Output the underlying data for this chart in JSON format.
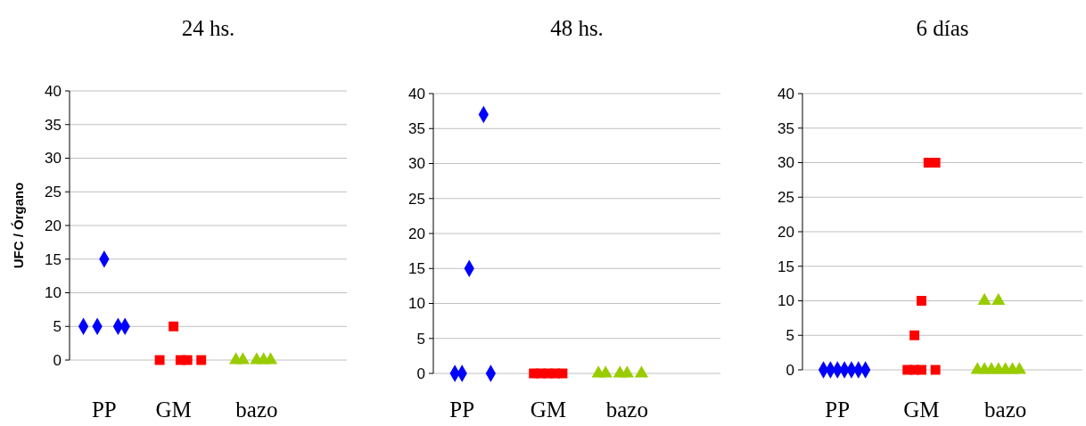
{
  "chart_data": [
    {
      "type": "scatter",
      "title": "24 hs.",
      "ylabel": "UFC / Órgano",
      "categories": [
        null,
        null,
        null,
        null,
        null,
        "PP",
        null,
        null,
        null,
        null,
        null,
        null,
        null,
        null,
        null,
        "GM",
        null,
        null,
        null,
        null,
        null,
        null,
        null,
        null,
        null,
        null,
        null,
        "bazo",
        null,
        null,
        null,
        null,
        null,
        null,
        null,
        null,
        null,
        null,
        null,
        null,
        null
      ],
      "ylim": [
        0,
        40
      ],
      "yticks": [
        0,
        5,
        10,
        15,
        20,
        25,
        30,
        35,
        40
      ],
      "grid": "y",
      "series": [
        {
          "color": "#0000ff",
          "marker": "diamond",
          "values": [
            null,
            null,
            5,
            null,
            5,
            15,
            null,
            5,
            5,
            null,
            null,
            null,
            null,
            null,
            null,
            null,
            null,
            null,
            null,
            null,
            null,
            null,
            null,
            null,
            null,
            null,
            null,
            null,
            null,
            null,
            null,
            null,
            null,
            null,
            null,
            null,
            null,
            null,
            null,
            null,
            null
          ]
        },
        {
          "color": "#ff0000",
          "marker": "square",
          "values": [
            null,
            null,
            null,
            null,
            null,
            null,
            null,
            null,
            null,
            null,
            null,
            null,
            null,
            0,
            null,
            5,
            0,
            0,
            null,
            0,
            null,
            null,
            null,
            null,
            null,
            null,
            null,
            null,
            null,
            null,
            null,
            null,
            null,
            null,
            null,
            null,
            null,
            null,
            null,
            null,
            null
          ]
        },
        {
          "color": "#99cc00",
          "marker": "triangle",
          "values": [
            null,
            null,
            null,
            null,
            null,
            null,
            null,
            null,
            null,
            null,
            null,
            null,
            null,
            null,
            null,
            null,
            null,
            null,
            null,
            null,
            null,
            null,
            null,
            null,
            0,
            0,
            null,
            0,
            0,
            0,
            null,
            null,
            null,
            null,
            null,
            null,
            null,
            null,
            null,
            null,
            null
          ]
        }
      ]
    },
    {
      "type": "scatter",
      "title": "48 hs.",
      "categories": [
        null,
        null,
        null,
        null,
        "PP",
        null,
        null,
        null,
        null,
        null,
        null,
        null,
        null,
        null,
        null,
        null,
        "GM",
        null,
        null,
        null,
        null,
        null,
        null,
        null,
        null,
        null,
        null,
        "bazo",
        null,
        null,
        null,
        null,
        null,
        null,
        null,
        null,
        null,
        null,
        null,
        null,
        null
      ],
      "ylim": [
        0,
        40
      ],
      "yticks": [
        0,
        5,
        10,
        15,
        20,
        25,
        30,
        35,
        40
      ],
      "grid": "y",
      "series": [
        {
          "color": "#0000ff",
          "marker": "diamond",
          "values": [
            null,
            null,
            null,
            0,
            0,
            15,
            null,
            37,
            0,
            null,
            null,
            null,
            null,
            null,
            null,
            null,
            null,
            null,
            null,
            null,
            null,
            null,
            null,
            null,
            null,
            null,
            null,
            null,
            null,
            null,
            null,
            null,
            null,
            null,
            null,
            null,
            null,
            null,
            null,
            null,
            null
          ]
        },
        {
          "color": "#ff0000",
          "marker": "square",
          "values": [
            null,
            null,
            null,
            null,
            null,
            null,
            null,
            null,
            null,
            null,
            null,
            null,
            null,
            null,
            0,
            0,
            0,
            0,
            0,
            null,
            null,
            null,
            null,
            null,
            null,
            null,
            null,
            null,
            null,
            null,
            null,
            null,
            null,
            null,
            null,
            null,
            null,
            null,
            null,
            null,
            null
          ]
        },
        {
          "color": "#99cc00",
          "marker": "triangle",
          "values": [
            null,
            null,
            null,
            null,
            null,
            null,
            null,
            null,
            null,
            null,
            null,
            null,
            null,
            null,
            null,
            null,
            null,
            null,
            null,
            null,
            null,
            null,
            null,
            0,
            0,
            null,
            0,
            0,
            null,
            0,
            null,
            null,
            null,
            null,
            null,
            null,
            null,
            null,
            null,
            null,
            null
          ]
        }
      ]
    },
    {
      "type": "scatter",
      "title": "6 días",
      "categories": [
        null,
        null,
        null,
        null,
        null,
        "PP",
        null,
        null,
        null,
        null,
        null,
        null,
        null,
        null,
        null,
        null,
        null,
        "GM",
        null,
        null,
        null,
        null,
        null,
        null,
        null,
        null,
        null,
        null,
        null,
        "bazo",
        null,
        null,
        null,
        null,
        null,
        null,
        null,
        null,
        null,
        null,
        null
      ],
      "ylim": [
        0,
        40
      ],
      "yticks": [
        0,
        5,
        10,
        15,
        20,
        25,
        30,
        35,
        40
      ],
      "grid": "y",
      "series": [
        {
          "color": "#0000ff",
          "marker": "diamond",
          "values": [
            null,
            null,
            null,
            0,
            0,
            0,
            0,
            0,
            0,
            0,
            null,
            null,
            null,
            null,
            null,
            null,
            null,
            null,
            null,
            null,
            null,
            null,
            null,
            null,
            null,
            null,
            null,
            null,
            null,
            null,
            null,
            null,
            null,
            null,
            null,
            null,
            null,
            null,
            null,
            null,
            null
          ]
        },
        {
          "color": "#ff0000",
          "marker": "square",
          "values": [
            null,
            null,
            null,
            null,
            null,
            null,
            null,
            null,
            null,
            null,
            null,
            null,
            null,
            null,
            null,
            0,
            0,
            0,
            null,
            0,
            null,
            null,
            null,
            null,
            null,
            null,
            null,
            null,
            null,
            null,
            null,
            null,
            null,
            null,
            null,
            null,
            null,
            null,
            null,
            null,
            null
          ]
        },
        {
          "color": "#ff0000",
          "marker": "square",
          "values": [
            null,
            null,
            null,
            null,
            null,
            null,
            null,
            null,
            null,
            null,
            null,
            null,
            null,
            null,
            null,
            null,
            5,
            10,
            30,
            30,
            null,
            null,
            null,
            null,
            null,
            null,
            null,
            null,
            null,
            null,
            null,
            null,
            null,
            null,
            null,
            null,
            null,
            null,
            null,
            null,
            null
          ]
        },
        {
          "color": "#99cc00",
          "marker": "triangle",
          "values": [
            null,
            null,
            null,
            null,
            null,
            null,
            null,
            null,
            null,
            null,
            null,
            null,
            null,
            null,
            null,
            null,
            null,
            null,
            null,
            null,
            null,
            null,
            null,
            null,
            null,
            0,
            0,
            0,
            0,
            0,
            0,
            0,
            null,
            null,
            null,
            null,
            null,
            null,
            null,
            null,
            null
          ]
        },
        {
          "color": "#99cc00",
          "marker": "triangle",
          "values": [
            null,
            null,
            null,
            null,
            null,
            null,
            null,
            null,
            null,
            null,
            null,
            null,
            null,
            null,
            null,
            null,
            null,
            null,
            null,
            null,
            null,
            null,
            null,
            null,
            null,
            null,
            10,
            null,
            10,
            null,
            null,
            null,
            null,
            null,
            null,
            null,
            null,
            null,
            null,
            null,
            null
          ]
        }
      ]
    }
  ]
}
